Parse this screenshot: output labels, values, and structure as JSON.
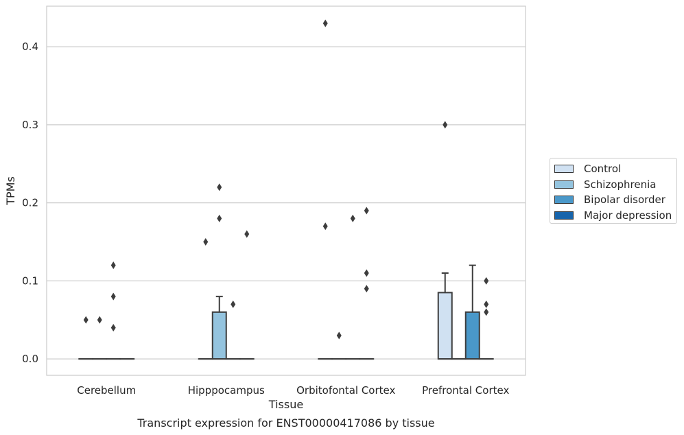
{
  "chart_data": {
    "type": "box",
    "title": "Transcript expression for ENST00000417086 by tissue",
    "xlabel": "Tissue",
    "ylabel": "TPMs",
    "ylim": [
      -0.021,
      0.452
    ],
    "yticks": [
      "0.0",
      "0.1",
      "0.2",
      "0.3",
      "0.4"
    ],
    "grid": true,
    "legend_position": "right",
    "categories": [
      "Cerebellum",
      "Hipppocampus",
      "Orbitofontal Cortex",
      "Prefrontal Cortex"
    ],
    "series": [
      {
        "name": "Control",
        "color": "#d0e1f2",
        "boxes": [
          {
            "q1": 0,
            "median": 0,
            "q3": 0,
            "whisker_low": 0,
            "whisker_high": 0,
            "outliers": [
              0.05
            ]
          },
          {
            "q1": 0,
            "median": 0,
            "q3": 0,
            "whisker_low": 0,
            "whisker_high": 0,
            "outliers": [
              0.15
            ]
          },
          {
            "q1": 0,
            "median": 0,
            "q3": 0,
            "whisker_low": 0,
            "whisker_high": 0,
            "outliers": [
              0.43,
              0.17
            ]
          },
          {
            "q1": 0,
            "median": 0,
            "q3": 0.085,
            "whisker_low": 0,
            "whisker_high": 0.11,
            "outliers": [
              0.3
            ]
          }
        ]
      },
      {
        "name": "Schizophrenia",
        "color": "#94c4df",
        "boxes": [
          {
            "q1": 0,
            "median": 0,
            "q3": 0,
            "whisker_low": 0,
            "whisker_high": 0,
            "outliers": [
              0.05
            ]
          },
          {
            "q1": 0,
            "median": 0,
            "q3": 0.06,
            "whisker_low": 0,
            "whisker_high": 0.08,
            "outliers": [
              0.22,
              0.18
            ]
          },
          {
            "q1": 0,
            "median": 0,
            "q3": 0,
            "whisker_low": 0,
            "whisker_high": 0,
            "outliers": [
              0.03
            ]
          },
          {
            "q1": 0,
            "median": 0,
            "q3": 0,
            "whisker_low": 0,
            "whisker_high": 0,
            "outliers": []
          }
        ]
      },
      {
        "name": "Bipolar disorder",
        "color": "#4a98c9",
        "boxes": [
          {
            "q1": 0,
            "median": 0,
            "q3": 0,
            "whisker_low": 0,
            "whisker_high": 0,
            "outliers": [
              0.12,
              0.08,
              0.04
            ]
          },
          {
            "q1": 0,
            "median": 0,
            "q3": 0,
            "whisker_low": 0,
            "whisker_high": 0,
            "outliers": [
              0.07
            ]
          },
          {
            "q1": 0,
            "median": 0,
            "q3": 0,
            "whisker_low": 0,
            "whisker_high": 0,
            "outliers": [
              0.18
            ]
          },
          {
            "q1": 0,
            "median": 0,
            "q3": 0.06,
            "whisker_low": 0,
            "whisker_high": 0.12,
            "outliers": []
          }
        ]
      },
      {
        "name": "Major depression",
        "color": "#1764ab",
        "boxes": [
          {
            "q1": 0,
            "median": 0,
            "q3": 0,
            "whisker_low": 0,
            "whisker_high": 0,
            "outliers": []
          },
          {
            "q1": 0,
            "median": 0,
            "q3": 0,
            "whisker_low": 0,
            "whisker_high": 0,
            "outliers": [
              0.16
            ]
          },
          {
            "q1": 0,
            "median": 0,
            "q3": 0,
            "whisker_low": 0,
            "whisker_high": 0,
            "outliers": [
              0.19,
              0.11,
              0.09
            ]
          },
          {
            "q1": 0,
            "median": 0,
            "q3": 0,
            "whisker_low": 0,
            "whisker_high": 0,
            "outliers": [
              0.1,
              0.07,
              0.06
            ]
          }
        ]
      }
    ]
  }
}
